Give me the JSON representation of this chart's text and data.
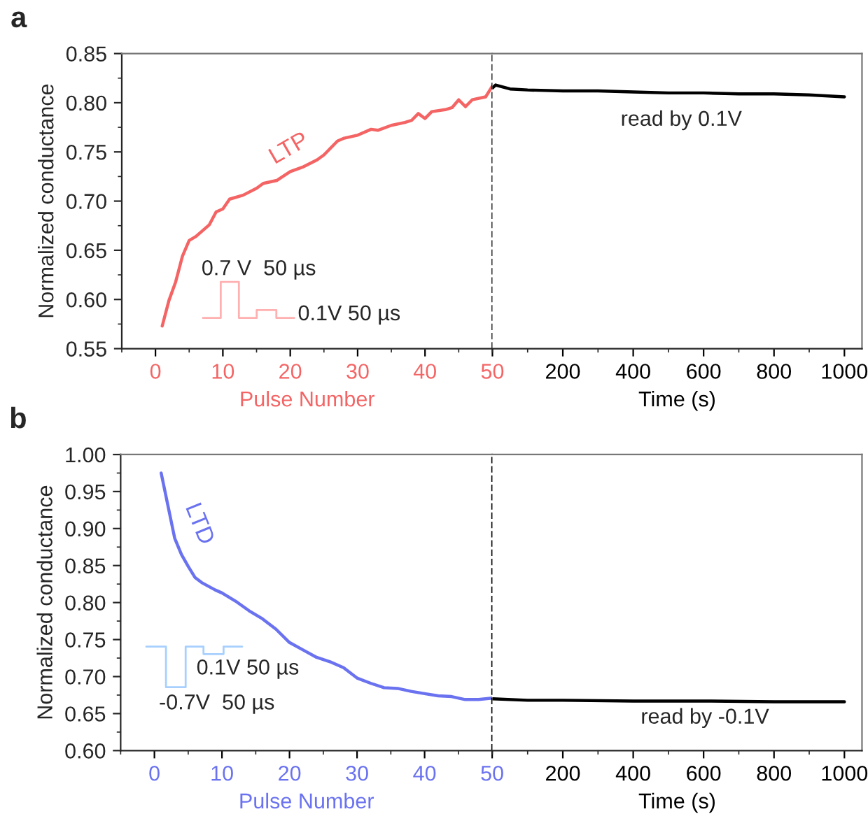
{
  "chart_data": [
    {
      "type": "line",
      "title": "a",
      "xlabel": "Pulse Number",
      "ylabel": "Normalized conductance",
      "xlim": [
        -5,
        50
      ],
      "xticks": [
        0,
        10,
        20,
        30,
        40,
        50
      ],
      "ylim": [
        0.55,
        0.85
      ],
      "yticks": [
        {
          "value": 0.55,
          "label": "0.55"
        },
        {
          "value": 0.6,
          "label": "0.60"
        },
        {
          "value": 0.65,
          "label": "0.65"
        },
        {
          "value": 0.7,
          "label": "0.70"
        },
        {
          "value": 0.75,
          "label": "0.75"
        },
        {
          "value": 0.8,
          "label": "0.80"
        },
        {
          "value": 0.85,
          "label": "0.85"
        }
      ],
      "series": [
        {
          "name": "LTP",
          "color": "#f46464",
          "x": [
            1,
            2,
            3,
            4,
            5,
            6,
            8,
            9,
            10,
            11,
            13,
            15,
            16,
            18,
            20,
            22,
            24,
            25,
            27,
            28,
            30,
            32,
            33,
            35,
            37,
            38,
            39,
            40,
            41,
            43,
            44,
            45,
            46,
            47,
            49,
            50
          ],
          "values": [
            0.573,
            0.599,
            0.618,
            0.644,
            0.66,
            0.664,
            0.676,
            0.689,
            0.692,
            0.702,
            0.706,
            0.713,
            0.718,
            0.721,
            0.73,
            0.735,
            0.742,
            0.747,
            0.761,
            0.764,
            0.767,
            0.773,
            0.772,
            0.777,
            0.78,
            0.782,
            0.789,
            0.784,
            0.791,
            0.793,
            0.795,
            0.803,
            0.796,
            0.803,
            0.806,
            0.817
          ]
        }
      ],
      "ref_lines": [
        {
          "axis": "x",
          "value": 50,
          "color": "#000000",
          "line_style": "dashed"
        }
      ],
      "annotations": [
        "0.7 V  50 µs",
        "0.1V 50 µs"
      ]
    },
    {
      "type": "line",
      "xlabel": "Time (s)",
      "xlim": [
        0,
        1050
      ],
      "xticks": [
        200,
        400,
        600,
        800,
        1000
      ],
      "ylim": [
        0.55,
        0.85
      ],
      "tick_labels": "x",
      "series": [
        {
          "color": "#000000",
          "x": [
            0,
            9,
            50,
            100,
            200,
            300,
            400,
            500,
            600,
            700,
            800,
            900,
            1000
          ],
          "values": [
            0.815,
            0.818,
            0.814,
            0.813,
            0.812,
            0.812,
            0.811,
            0.81,
            0.81,
            0.809,
            0.809,
            0.808,
            0.806
          ]
        }
      ],
      "annotations": [
        "read by 0.1V"
      ]
    },
    {
      "type": "line",
      "title": "b",
      "xlabel": "Pulse Number",
      "ylabel": "Normalized conductance",
      "xlim": [
        -5,
        50
      ],
      "xticks": [
        0,
        10,
        20,
        30,
        40,
        50
      ],
      "ylim": [
        0.6,
        1.0
      ],
      "yticks": [
        {
          "value": 0.6,
          "label": "0.60"
        },
        {
          "value": 0.65,
          "label": "0.65"
        },
        {
          "value": 0.7,
          "label": "0.70"
        },
        {
          "value": 0.75,
          "label": "0.75"
        },
        {
          "value": 0.8,
          "label": "0.80"
        },
        {
          "value": 0.85,
          "label": "0.85"
        },
        {
          "value": 0.9,
          "label": "0.90"
        },
        {
          "value": 0.95,
          "label": "0.95"
        },
        {
          "value": 1.0,
          "label": "1.00"
        }
      ],
      "series": [
        {
          "name": "LTD",
          "color": "#6a72f0",
          "x": [
            1,
            2,
            3,
            4,
            5,
            6,
            7,
            9,
            10,
            12,
            14,
            16,
            18,
            20,
            22,
            24,
            26,
            28,
            30,
            32,
            34,
            36,
            38,
            40,
            42,
            44,
            46,
            48,
            50
          ],
          "values": [
            0.975,
            0.931,
            0.887,
            0.865,
            0.849,
            0.834,
            0.827,
            0.817,
            0.813,
            0.802,
            0.789,
            0.778,
            0.764,
            0.746,
            0.736,
            0.726,
            0.72,
            0.712,
            0.698,
            0.691,
            0.685,
            0.684,
            0.68,
            0.677,
            0.674,
            0.673,
            0.669,
            0.669,
            0.671
          ]
        }
      ],
      "ref_lines": [
        {
          "axis": "x",
          "value": 50,
          "color": "#000000",
          "line_style": "dashed"
        }
      ],
      "annotations": [
        "0.1V 50 µs",
        "-0.7V  50 µs"
      ]
    },
    {
      "type": "line",
      "xlabel": "Time (s)",
      "xlim": [
        0,
        1050
      ],
      "xticks": [
        200,
        400,
        600,
        800,
        1000
      ],
      "ylim": [
        0.6,
        1.0
      ],
      "tick_labels": "x",
      "series": [
        {
          "color": "#000000",
          "x": [
            0,
            100,
            200,
            400,
            600,
            800,
            1000
          ],
          "values": [
            0.67,
            0.668,
            0.668,
            0.667,
            0.667,
            0.666,
            0.666
          ]
        }
      ],
      "annotations": [
        "read by -0.1V"
      ]
    }
  ]
}
